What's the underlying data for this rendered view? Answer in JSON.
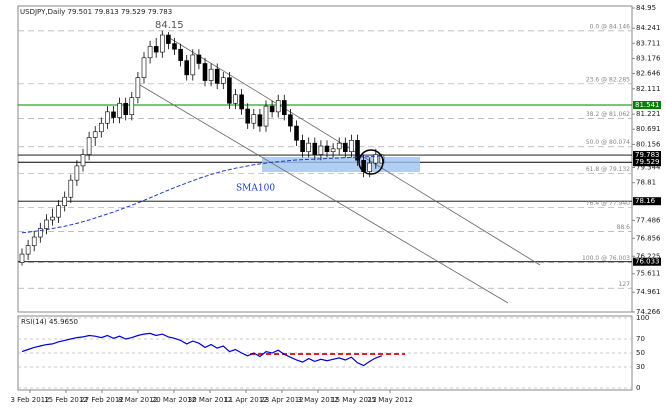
{
  "chart_data": {
    "type": "candlestick",
    "title": "USDJPY,Daily  79.501 79.813 79.529 79.783",
    "annotation": "84.15",
    "sma_label": "SMA100",
    "ylim": [
      74.266,
      84.95
    ],
    "yticks": [
      84.95,
      84.241,
      83.711,
      83.176,
      82.646,
      82.111,
      81.221,
      80.691,
      80.156,
      79.344,
      78.81,
      77.486,
      76.856,
      76.225,
      75.611,
      74.961,
      74.266
    ],
    "ohlc": [
      [
        76.0,
        76.5,
        75.9,
        76.3
      ],
      [
        76.3,
        76.8,
        76.1,
        76.6
      ],
      [
        76.6,
        77.1,
        76.4,
        76.9
      ],
      [
        76.9,
        77.4,
        76.7,
        77.2
      ],
      [
        77.2,
        77.7,
        77.0,
        77.5
      ],
      [
        77.5,
        77.9,
        77.3,
        77.6
      ],
      [
        77.6,
        78.2,
        77.4,
        78.0
      ],
      [
        78.0,
        78.5,
        77.8,
        78.3
      ],
      [
        78.3,
        79.1,
        78.1,
        78.9
      ],
      [
        78.9,
        79.6,
        78.7,
        79.4
      ],
      [
        79.4,
        80.0,
        79.2,
        79.8
      ],
      [
        79.8,
        80.6,
        79.6,
        80.4
      ],
      [
        80.4,
        80.8,
        80.1,
        80.6
      ],
      [
        80.6,
        81.1,
        80.4,
        80.9
      ],
      [
        80.9,
        81.5,
        80.7,
        81.3
      ],
      [
        81.3,
        81.5,
        80.9,
        81.1
      ],
      [
        81.1,
        81.8,
        80.9,
        81.6
      ],
      [
        81.6,
        81.8,
        81.0,
        81.2
      ],
      [
        81.2,
        82.0,
        81.0,
        81.8
      ],
      [
        81.8,
        82.7,
        81.6,
        82.5
      ],
      [
        82.5,
        83.4,
        82.3,
        83.2
      ],
      [
        83.2,
        83.8,
        83.0,
        83.6
      ],
      [
        83.6,
        83.9,
        83.2,
        83.4
      ],
      [
        83.4,
        84.15,
        83.2,
        84.0
      ],
      [
        84.0,
        84.1,
        83.5,
        83.7
      ],
      [
        83.7,
        83.9,
        83.3,
        83.5
      ],
      [
        83.5,
        83.7,
        82.9,
        83.1
      ],
      [
        83.1,
        83.3,
        82.4,
        82.6
      ],
      [
        82.6,
        83.5,
        82.4,
        83.3
      ],
      [
        83.3,
        83.5,
        82.8,
        83.0
      ],
      [
        83.0,
        83.2,
        82.2,
        82.4
      ],
      [
        82.4,
        83.0,
        82.2,
        82.8
      ],
      [
        82.8,
        83.0,
        82.1,
        82.3
      ],
      [
        82.3,
        82.7,
        82.1,
        82.5
      ],
      [
        82.5,
        82.7,
        81.4,
        81.6
      ],
      [
        81.6,
        82.1,
        81.4,
        81.9
      ],
      [
        81.9,
        82.1,
        81.2,
        81.4
      ],
      [
        81.4,
        81.6,
        80.7,
        80.9
      ],
      [
        80.9,
        81.4,
        80.7,
        81.2
      ],
      [
        81.2,
        81.4,
        80.6,
        80.8
      ],
      [
        80.8,
        81.7,
        80.6,
        81.5
      ],
      [
        81.5,
        81.7,
        81.1,
        81.3
      ],
      [
        81.3,
        81.9,
        81.1,
        81.7
      ],
      [
        81.7,
        81.9,
        81.0,
        81.2
      ],
      [
        81.2,
        81.4,
        80.6,
        80.8
      ],
      [
        80.8,
        81.0,
        80.1,
        80.3
      ],
      [
        80.3,
        80.5,
        79.7,
        79.9
      ],
      [
        79.9,
        80.4,
        79.7,
        80.2
      ],
      [
        80.2,
        80.4,
        79.6,
        79.8
      ],
      [
        79.8,
        80.3,
        79.6,
        80.1
      ],
      [
        80.1,
        80.3,
        79.7,
        79.9
      ],
      [
        79.9,
        80.2,
        79.7,
        80.0
      ],
      [
        80.0,
        80.4,
        79.8,
        80.2
      ],
      [
        80.2,
        80.4,
        79.7,
        79.9
      ],
      [
        79.9,
        80.5,
        79.7,
        80.3
      ],
      [
        80.3,
        80.5,
        79.4,
        79.6
      ],
      [
        79.6,
        79.8,
        79.0,
        79.2
      ],
      [
        79.2,
        79.7,
        79.0,
        79.5
      ],
      [
        79.5,
        80.0,
        79.3,
        79.8
      ],
      [
        79.501,
        79.813,
        79.529,
        79.783
      ]
    ],
    "sma100": [
      77.05,
      77.07,
      77.1,
      77.13,
      77.16,
      77.2,
      77.24,
      77.28,
      77.33,
      77.38,
      77.44,
      77.5,
      77.57,
      77.64,
      77.71,
      77.78,
      77.86,
      77.94,
      78.02,
      78.1,
      78.19,
      78.28,
      78.37,
      78.46,
      78.55,
      78.64,
      78.72,
      78.8,
      78.88,
      78.96,
      79.03,
      79.1,
      79.16,
      79.22,
      79.27,
      79.32,
      79.36,
      79.4,
      79.44,
      79.47,
      79.5,
      79.53,
      79.55,
      79.57,
      79.59,
      79.61,
      79.62,
      79.63,
      79.64,
      79.65,
      79.66,
      79.67,
      79.68,
      79.69,
      79.7,
      79.71,
      79.72,
      79.73,
      79.74,
      79.75
    ],
    "hlines": [
      {
        "value": 81.541,
        "color": "#008000"
      },
      {
        "value": 79.783,
        "color": "#000000"
      },
      {
        "value": 79.529,
        "color": "#000000"
      },
      {
        "value": 78.16,
        "color": "#000000"
      },
      {
        "value": 76.033,
        "color": "#000000"
      }
    ],
    "fib": [
      {
        "value": 84.146,
        "label": "0.0 @ 84.146"
      },
      {
        "value": 82.285,
        "label": "23.6 @ 82.285"
      },
      {
        "value": 81.062,
        "label": "38.2 @ 81.062"
      },
      {
        "value": 80.074,
        "label": "50.0 @ 80.074"
      },
      {
        "value": 79.132,
        "label": "61.8 @ 79.132"
      },
      {
        "value": 77.94,
        "label": "76.4 @ 77.940"
      },
      {
        "value": 77.1,
        "label": "88.6"
      },
      {
        "value": 76.0,
        "label": "100.0 @ 76.003"
      },
      {
        "value": 75.1,
        "label": "127"
      }
    ],
    "x_labels": [
      "3 Feb 2012",
      "15 Feb 2012",
      "27 Feb 2012",
      "8 Mar 2012",
      "20 Mar 2012",
      "30 Mar 2012",
      "11 Apr 2012",
      "23 Apr 2012",
      "3 May 2012",
      "15 May 2012",
      "25 May 2012"
    ],
    "rsi": {
      "label": "RSI(14) 45.9650",
      "ylim": [
        0,
        100
      ],
      "yticks": [
        100,
        70,
        50,
        30,
        0
      ],
      "color": "#0000cc",
      "values": [
        52,
        55,
        58,
        60,
        62,
        63,
        66,
        68,
        70,
        72,
        73,
        75,
        74,
        72,
        75,
        71,
        74,
        70,
        72,
        75,
        77,
        78,
        75,
        77,
        73,
        71,
        68,
        63,
        67,
        64,
        58,
        62,
        57,
        60,
        52,
        55,
        50,
        46,
        50,
        45,
        52,
        50,
        54,
        48,
        44,
        40,
        37,
        42,
        38,
        41,
        39,
        41,
        43,
        40,
        44,
        36,
        32,
        38,
        43,
        45.97
      ]
    }
  }
}
